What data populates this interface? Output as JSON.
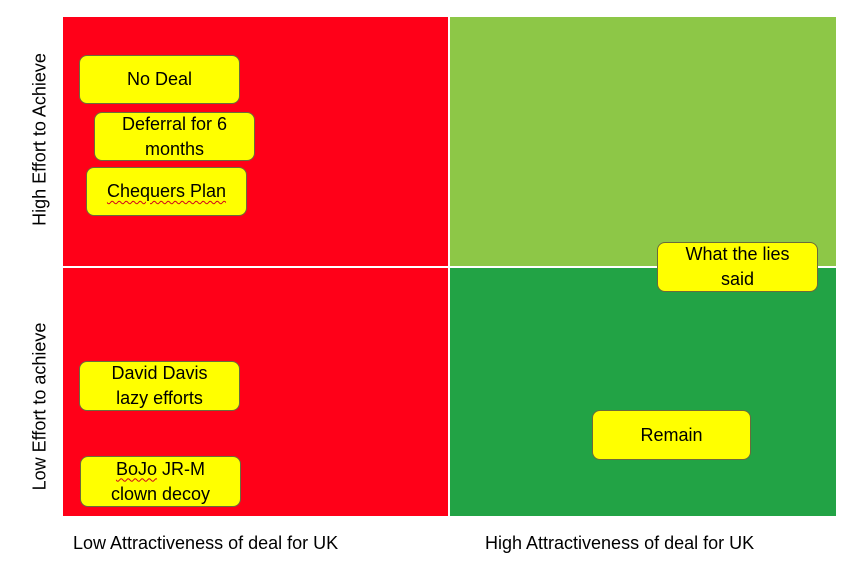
{
  "colors": {
    "low_attractiveness_quadrants": "#ff0018",
    "high_attractiveness_high_effort": "#8dc747",
    "high_attractiveness_low_effort": "#22a345",
    "sticky_note_fill": "#ffff00",
    "spell_check_underline": "#d0021b"
  },
  "axes": {
    "y_top_label": "High Effort to Achieve",
    "y_bottom_label": "Low Effort to achieve",
    "x_left_label": "Low Attractiveness of deal for UK",
    "x_right_label": "High Attractiveness of deal for UK"
  },
  "notes": {
    "no_deal": "No Deal",
    "deferral": "Deferral for 6\nmonths",
    "chequers": "Chequers Plan",
    "what_the_lies": "What the lies\nsaid",
    "david_davis": "David Davis\nlazy efforts",
    "bojo_line1": "BoJo",
    "bojo_line1_rest": " JR-M",
    "bojo_line2": "clown decoy",
    "remain": "Remain"
  }
}
